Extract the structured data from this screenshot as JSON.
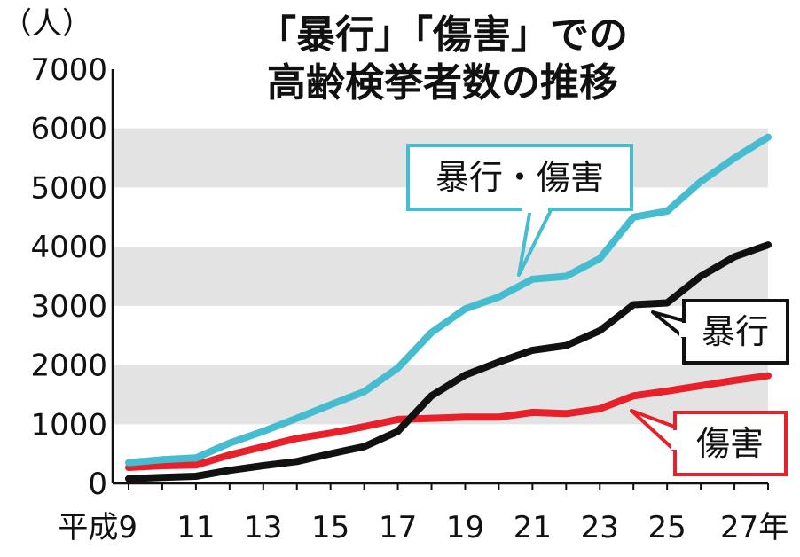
{
  "chart_data": {
    "type": "line",
    "title_line1": "「暴行」「傷害」での",
    "title_line2": "高齢検挙者数の推移",
    "y_unit": "（人）",
    "ylim": [
      0,
      7000
    ],
    "y_ticks": [
      0,
      1000,
      2000,
      3000,
      4000,
      5000,
      6000,
      7000
    ],
    "y_tick_labels": [
      "0",
      "1000",
      "2000",
      "3000",
      "4000",
      "5000",
      "6000",
      "7000"
    ],
    "x": [
      9,
      10,
      11,
      12,
      13,
      14,
      15,
      16,
      17,
      18,
      19,
      20,
      21,
      22,
      23,
      24,
      25,
      26,
      27,
      28
    ],
    "x_tick_labels": [
      {
        "x": 9,
        "label": "平成9"
      },
      {
        "x": 11,
        "label": "11"
      },
      {
        "x": 13,
        "label": "13"
      },
      {
        "x": 15,
        "label": "15"
      },
      {
        "x": 17,
        "label": "17"
      },
      {
        "x": 19,
        "label": "19"
      },
      {
        "x": 21,
        "label": "21"
      },
      {
        "x": 23,
        "label": "23"
      },
      {
        "x": 25,
        "label": "25"
      },
      {
        "x": 27,
        "label": "27年"
      }
    ],
    "grid": "alternating horizontal bands",
    "series": [
      {
        "name": "暴行・傷害",
        "color": "#46bcd0",
        "values": [
          350,
          400,
          430,
          680,
          880,
          1100,
          1330,
          1550,
          1950,
          2550,
          2950,
          3150,
          3450,
          3500,
          3800,
          4500,
          4600,
          5100,
          5500,
          5850
        ]
      },
      {
        "name": "暴行",
        "color": "#111111",
        "values": [
          80,
          100,
          120,
          220,
          300,
          370,
          500,
          620,
          880,
          1480,
          1830,
          2050,
          2250,
          2330,
          2580,
          3020,
          3050,
          3500,
          3830,
          4030
        ]
      },
      {
        "name": "傷害",
        "color": "#e8202a",
        "values": [
          270,
          300,
          310,
          480,
          620,
          760,
          850,
          960,
          1080,
          1100,
          1120,
          1120,
          1200,
          1180,
          1260,
          1480,
          1560,
          1650,
          1740,
          1820
        ]
      }
    ]
  },
  "colors": {
    "band": "#e3e3e3",
    "background": "#ffffff",
    "axis": "#111111"
  }
}
